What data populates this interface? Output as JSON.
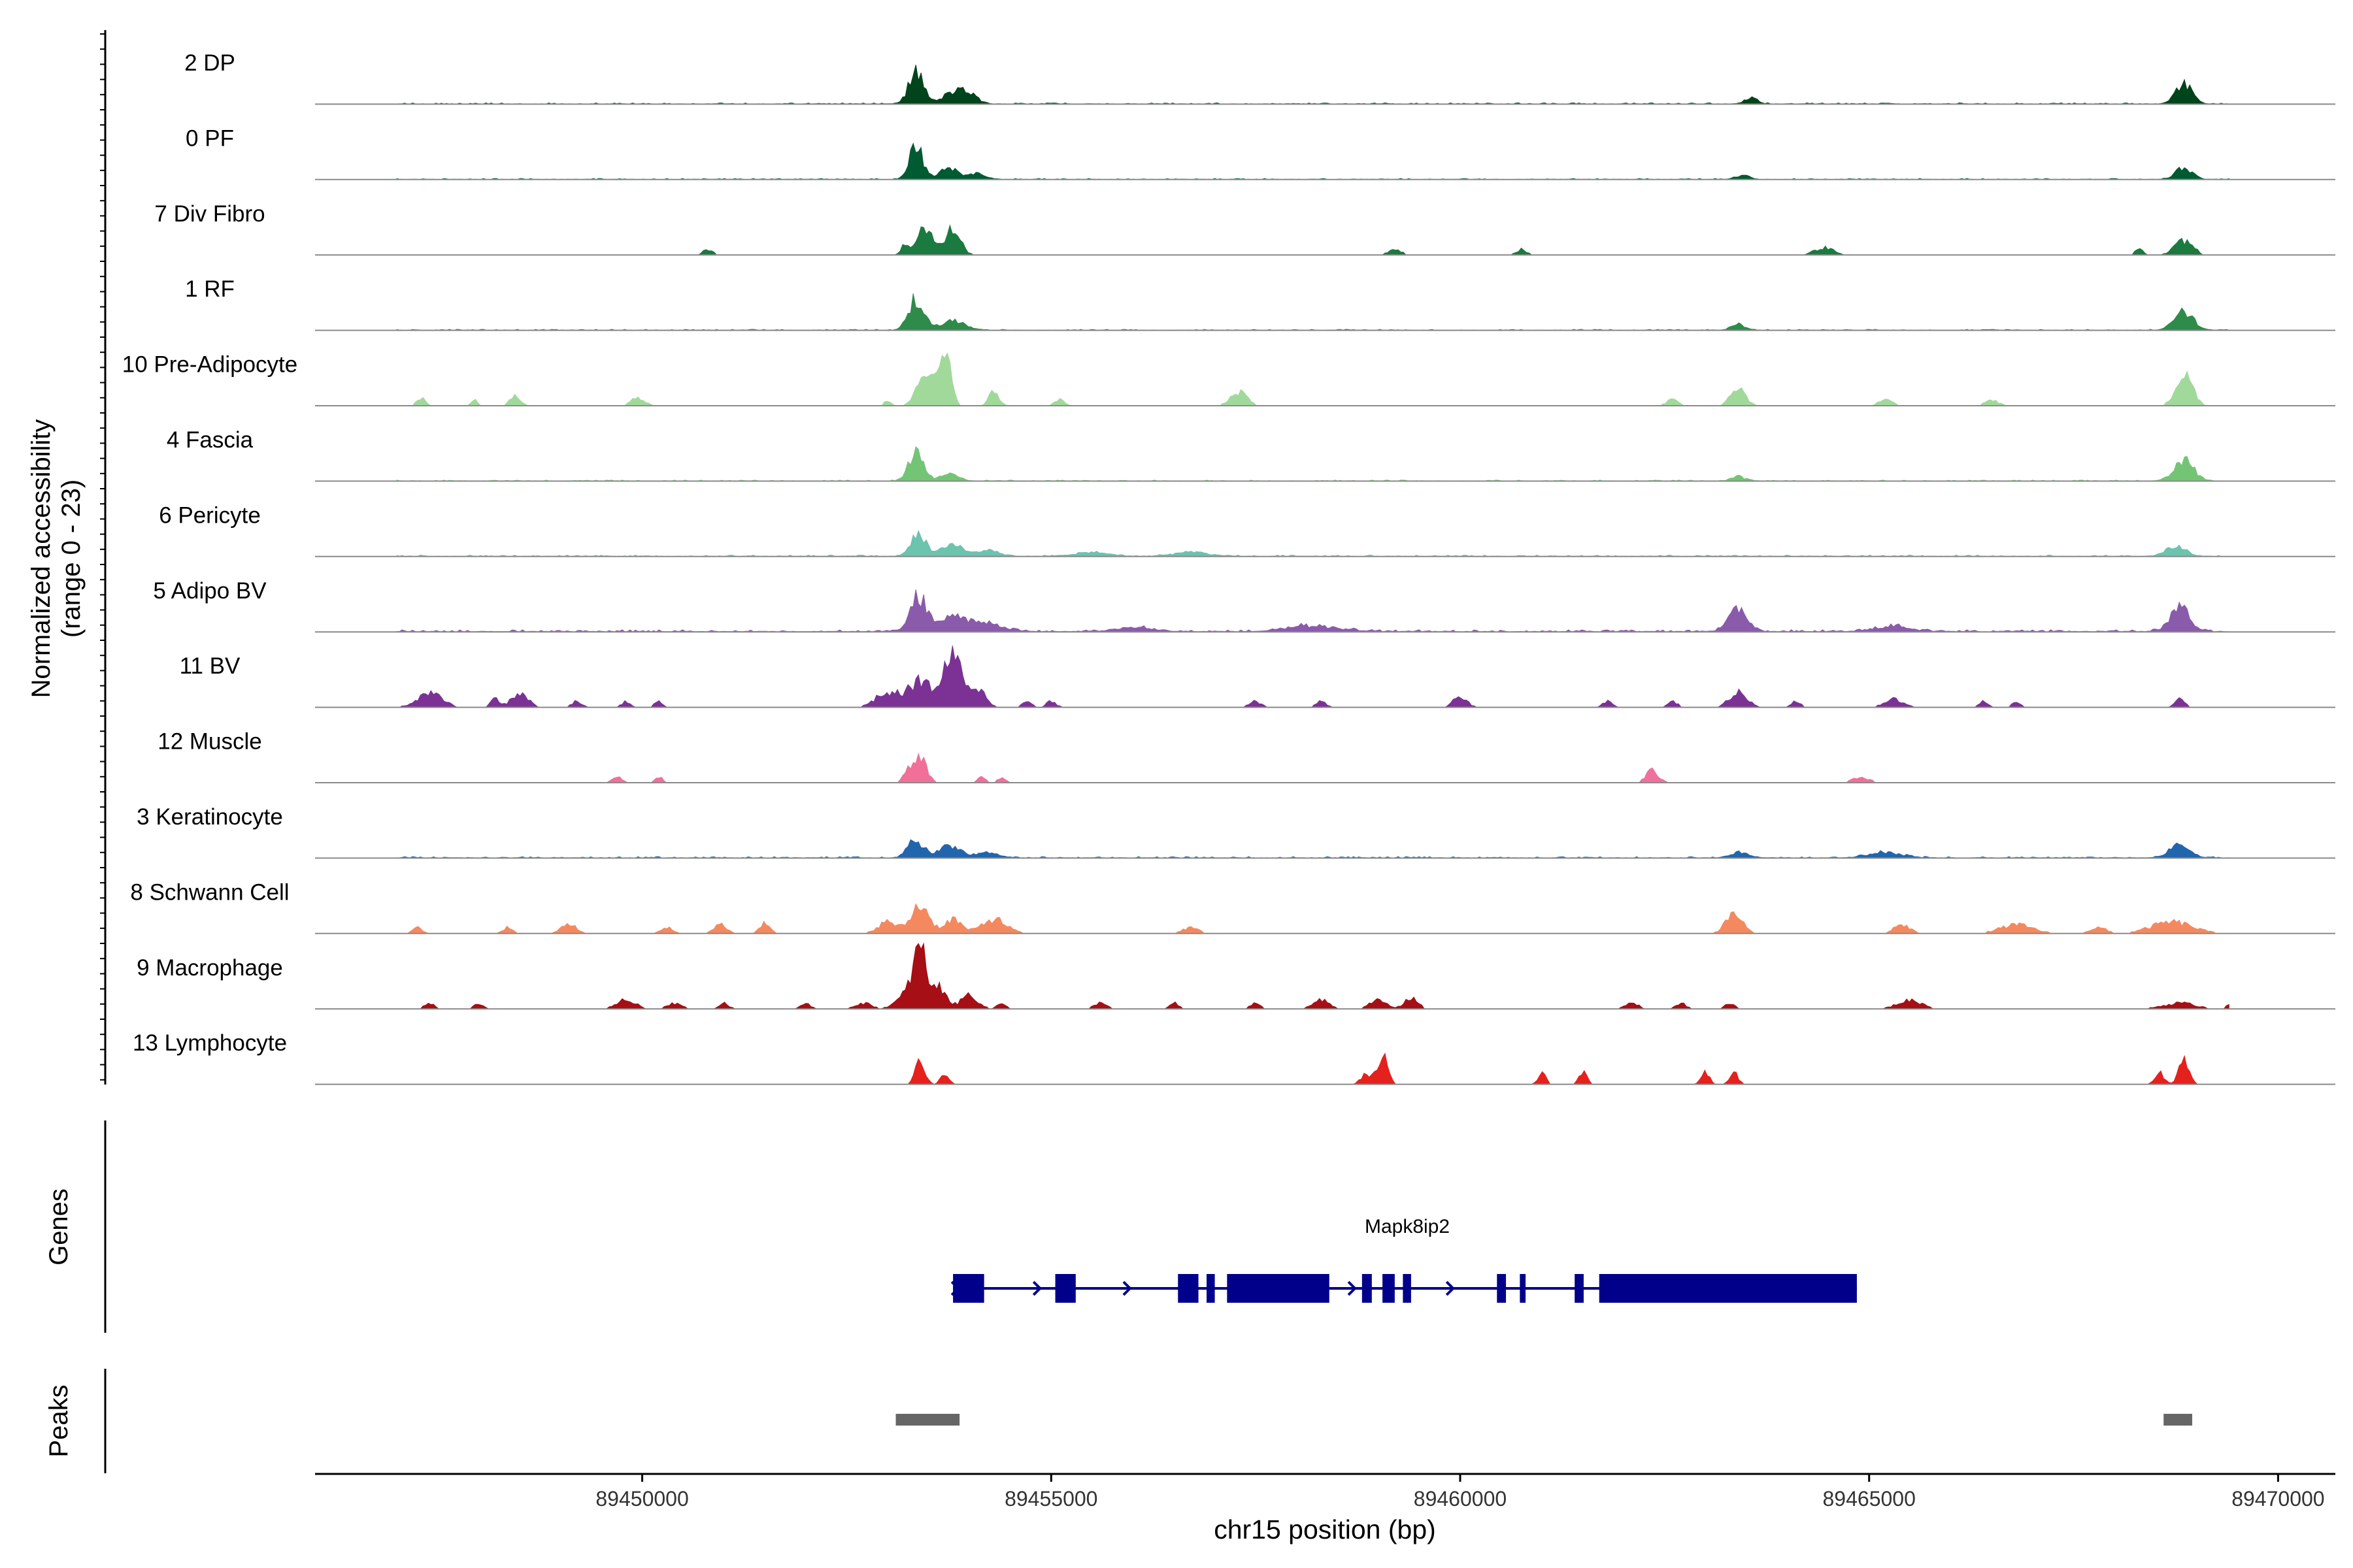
{
  "chart_data": {
    "type": "area",
    "title": "",
    "chromosome": "chr15",
    "xlabel": "chr15 position (bp)",
    "xlim": [
      89446000,
      89470700
    ],
    "xticks": [
      89450000,
      89455000,
      89460000,
      89465000,
      89470000
    ],
    "xtick_labels": [
      "89450000",
      "89455000",
      "89460000",
      "89465000",
      "89470000"
    ],
    "ylabel_line1": "Normalized accessibility",
    "ylabel_line2": "(range 0 - 23)",
    "ylim": [
      0,
      23
    ],
    "genes_label": "Genes",
    "peaks_label": "Peaks",
    "series": [
      {
        "name": "2 DP",
        "color": "#00441B",
        "mode": "smooth",
        "noise": 0.06,
        "peaks": [
          [
            89453350,
            11,
            90
          ],
          [
            89453800,
            4,
            120
          ],
          [
            89454000,
            3,
            100
          ],
          [
            89468850,
            7,
            100
          ],
          [
            89463550,
            2,
            80
          ]
        ]
      },
      {
        "name": "0 PF",
        "color": "#005A32",
        "mode": "smooth",
        "noise": 0.05,
        "peaks": [
          [
            89453350,
            12,
            80
          ],
          [
            89453750,
            4,
            100
          ],
          [
            89454100,
            2,
            100
          ],
          [
            89468850,
            4,
            100
          ],
          [
            89463450,
            1.5,
            80
          ]
        ]
      },
      {
        "name": "7 Div Fibro",
        "color": "#1A7A3F",
        "mode": "sparse",
        "peaks": [
          [
            89450800,
            2,
            60
          ],
          [
            89453200,
            3,
            40
          ],
          [
            89453450,
            10,
            100
          ],
          [
            89453800,
            9,
            90
          ],
          [
            89459200,
            2,
            80
          ],
          [
            89460750,
            2,
            60
          ],
          [
            89464450,
            2.5,
            120
          ],
          [
            89468300,
            2,
            50
          ],
          [
            89468850,
            5,
            110
          ]
        ]
      },
      {
        "name": "1 RF",
        "color": "#2E8B4A",
        "mode": "smooth",
        "noise": 0.05,
        "peaks": [
          [
            89453350,
            11,
            90
          ],
          [
            89453800,
            3,
            150
          ],
          [
            89463400,
            2,
            80
          ],
          [
            89468850,
            6,
            120
          ]
        ]
      },
      {
        "name": "10 Pre-Adipocyte",
        "color": "#A1D99B",
        "mode": "sparse",
        "peaks": [
          [
            89446300,
            2,
            40
          ],
          [
            89447300,
            3,
            50
          ],
          [
            89447950,
            2,
            40
          ],
          [
            89448450,
            4,
            60
          ],
          [
            89449950,
            3,
            80
          ],
          [
            89453000,
            2,
            40
          ],
          [
            89453450,
            14,
            90
          ],
          [
            89453700,
            18,
            70
          ],
          [
            89454300,
            5,
            60
          ],
          [
            89455100,
            2,
            60
          ],
          [
            89457300,
            5,
            100
          ],
          [
            89462600,
            2,
            80
          ],
          [
            89463400,
            6,
            90
          ],
          [
            89465200,
            2,
            90
          ],
          [
            89466500,
            2,
            80
          ],
          [
            89468850,
            11,
            100
          ]
        ]
      },
      {
        "name": "4 Fascia",
        "color": "#74C476",
        "mode": "smooth",
        "noise": 0.05,
        "peaks": [
          [
            89453350,
            10,
            90
          ],
          [
            89453750,
            3,
            100
          ],
          [
            89468850,
            7,
            120
          ],
          [
            89463400,
            1.5,
            80
          ]
        ]
      },
      {
        "name": "6 Pericyte",
        "color": "#6CC3AE",
        "mode": "smooth",
        "noise": 0.07,
        "peaks": [
          [
            89453380,
            8,
            90
          ],
          [
            89453800,
            4,
            130
          ],
          [
            89454250,
            2,
            120
          ],
          [
            89455500,
            1.5,
            200
          ],
          [
            89456700,
            1.5,
            200
          ],
          [
            89468750,
            3.5,
            120
          ]
        ]
      },
      {
        "name": "5 Adipo BV",
        "color": "#8A5BAA",
        "mode": "smooth",
        "noise": 0.1,
        "peaks": [
          [
            89453380,
            12,
            100
          ],
          [
            89453800,
            5,
            150
          ],
          [
            89454200,
            3,
            200
          ],
          [
            89456000,
            1.5,
            200
          ],
          [
            89458200,
            2,
            300
          ],
          [
            89463400,
            8,
            110
          ],
          [
            89465300,
            2,
            200
          ],
          [
            89468800,
            8,
            120
          ]
        ]
      },
      {
        "name": "11 BV",
        "color": "#7B3294",
        "mode": "sparse",
        "peaks": [
          [
            89446300,
            2,
            30
          ],
          [
            89447400,
            5,
            150
          ],
          [
            89448200,
            3,
            50
          ],
          [
            89448500,
            5,
            100
          ],
          [
            89449200,
            2,
            60
          ],
          [
            89449800,
            2,
            50
          ],
          [
            89450200,
            2,
            50
          ],
          [
            89453000,
            5,
            150
          ],
          [
            89453400,
            9,
            140
          ],
          [
            89453800,
            17,
            120
          ],
          [
            89454100,
            6,
            100
          ],
          [
            89454700,
            2,
            60
          ],
          [
            89455000,
            2,
            60
          ],
          [
            89457500,
            2,
            80
          ],
          [
            89458300,
            2,
            60
          ],
          [
            89460000,
            4,
            80
          ],
          [
            89461800,
            2,
            60
          ],
          [
            89462600,
            2,
            60
          ],
          [
            89463400,
            5,
            110
          ],
          [
            89464100,
            2,
            60
          ],
          [
            89465300,
            3,
            110
          ],
          [
            89466400,
            2,
            50
          ],
          [
            89466800,
            2,
            50
          ],
          [
            89468800,
            3,
            60
          ]
        ]
      },
      {
        "name": "12 Muscle",
        "color": "#F0709A",
        "mode": "sparse",
        "peaks": [
          [
            89449700,
            2,
            60
          ],
          [
            89450200,
            2,
            50
          ],
          [
            89453250,
            4,
            60
          ],
          [
            89453400,
            8,
            80
          ],
          [
            89454150,
            2,
            50
          ],
          [
            89454400,
            2,
            50
          ],
          [
            89462350,
            4,
            80
          ],
          [
            89464900,
            2,
            100
          ]
        ]
      },
      {
        "name": "3 Keratinocyte",
        "color": "#2166AC",
        "mode": "smooth",
        "noise": 0.07,
        "peaks": [
          [
            89453350,
            6,
            100
          ],
          [
            89453750,
            4,
            120
          ],
          [
            89454200,
            2,
            150
          ],
          [
            89463400,
            2,
            100
          ],
          [
            89465200,
            2,
            200
          ],
          [
            89468800,
            4,
            130
          ]
        ]
      },
      {
        "name": "8 Schwann Cell",
        "color": "#F4895F",
        "mode": "sparse",
        "peaks": [
          [
            89447250,
            2,
            60
          ],
          [
            89448350,
            2,
            60
          ],
          [
            89449100,
            3,
            100
          ],
          [
            89450300,
            2,
            80
          ],
          [
            89450950,
            3,
            80
          ],
          [
            89451500,
            4,
            60
          ],
          [
            89453000,
            4,
            120
          ],
          [
            89453400,
            10,
            110
          ],
          [
            89453800,
            5,
            100
          ],
          [
            89454300,
            5,
            150
          ],
          [
            89456700,
            2,
            100
          ],
          [
            89463350,
            7,
            100
          ],
          [
            89465400,
            3,
            100
          ],
          [
            89466800,
            3,
            200
          ],
          [
            89467800,
            2,
            100
          ],
          [
            89468700,
            4,
            250
          ]
        ]
      },
      {
        "name": "9 Macrophage",
        "color": "#A50F15",
        "mode": "sparse",
        "peaks": [
          [
            89446300,
            2,
            40
          ],
          [
            89447400,
            2,
            60
          ],
          [
            89448000,
            2,
            60
          ],
          [
            89449800,
            3,
            120
          ],
          [
            89450400,
            2,
            100
          ],
          [
            89451000,
            2,
            60
          ],
          [
            89452000,
            2,
            60
          ],
          [
            89452700,
            2,
            100
          ],
          [
            89453300,
            6,
            150
          ],
          [
            89453400,
            17,
            80
          ],
          [
            89453650,
            7,
            80
          ],
          [
            89454000,
            5,
            100
          ],
          [
            89454400,
            2,
            60
          ],
          [
            89455600,
            2,
            80
          ],
          [
            89456500,
            2,
            60
          ],
          [
            89457500,
            2,
            60
          ],
          [
            89458300,
            3,
            100
          ],
          [
            89459000,
            3,
            100
          ],
          [
            89459400,
            4,
            80
          ],
          [
            89462100,
            2,
            80
          ],
          [
            89462700,
            2,
            60
          ],
          [
            89463300,
            2,
            60
          ],
          [
            89465500,
            3,
            150
          ],
          [
            89468800,
            2,
            200
          ],
          [
            89469400,
            1.5,
            30
          ]
        ]
      },
      {
        "name": "13 Lymphocyte",
        "color": "#E4211C",
        "mode": "sparse",
        "peaks": [
          [
            89453400,
            8,
            60
          ],
          [
            89453700,
            4,
            50
          ],
          [
            89458850,
            4,
            60
          ],
          [
            89459050,
            11,
            60
          ],
          [
            89461000,
            4,
            50
          ],
          [
            89461500,
            4,
            50
          ],
          [
            89463000,
            4,
            50
          ],
          [
            89463350,
            4,
            50
          ],
          [
            89468550,
            4,
            60
          ],
          [
            89468850,
            9,
            60
          ]
        ]
      }
    ],
    "gene": {
      "name": "Mapk8ip2",
      "strand": "+",
      "start": 89453800,
      "end": 89464850,
      "color": "#00008B",
      "exons": [
        [
          89453800,
          89454180
        ],
        [
          89455050,
          89455300
        ],
        [
          89456550,
          89456800
        ],
        [
          89456900,
          89457000
        ],
        [
          89457150,
          89458400
        ],
        [
          89458800,
          89458920
        ],
        [
          89459050,
          89459200
        ],
        [
          89459300,
          89459400
        ],
        [
          89460450,
          89460560
        ],
        [
          89460730,
          89460800
        ],
        [
          89461400,
          89461510
        ],
        [
          89461700,
          89464850
        ]
      ],
      "arrows": [
        89453800,
        89454800,
        89455900,
        89458650,
        89459850
      ]
    },
    "peaks_track": [
      [
        89453100,
        89453880
      ],
      [
        89468600,
        89468950
      ]
    ]
  }
}
